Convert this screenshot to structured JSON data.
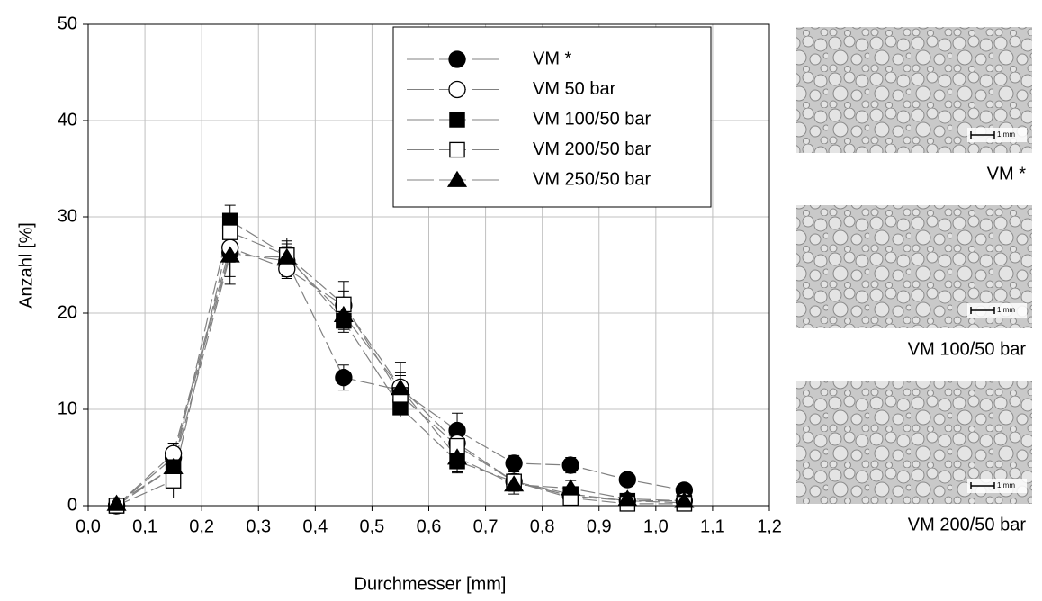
{
  "chart_data": {
    "type": "line",
    "xlabel": "Durchmesser [mm]",
    "ylabel": "Anzahl [%]",
    "x": [
      0.05,
      0.15,
      0.25,
      0.35,
      0.45,
      0.55,
      0.65,
      0.75,
      0.85,
      0.95,
      1.05
    ],
    "series": [
      {
        "name": "VM *",
        "color": "#000000",
        "marker": "circle",
        "filled": true,
        "values": [
          0,
          5,
          26.3,
          25.4,
          13.3,
          12,
          7.8,
          4.4,
          4.2,
          2.7,
          1.6
        ],
        "errors": [
          0.3,
          1.5,
          2.5,
          1.5,
          1.3,
          1.8,
          1.8,
          0.8,
          0.8,
          0.6,
          0.6
        ]
      },
      {
        "name": "VM 50 bar",
        "color": "#000000",
        "marker": "circle",
        "filled": false,
        "values": [
          0,
          5.4,
          26.8,
          24.6,
          20.8,
          12.3,
          6.5,
          2.5,
          1,
          0.5,
          0.5
        ],
        "errors": [
          0.3,
          1,
          1.5,
          1,
          1.5,
          1.2,
          1.2,
          0.8,
          0.5,
          0.3,
          0.3
        ]
      },
      {
        "name": "VM 100/50 bar",
        "color": "#000000",
        "marker": "square",
        "filled": true,
        "values": [
          0,
          4,
          29.6,
          26,
          19.2,
          10.2,
          4.6,
          2.5,
          1.2,
          0.5,
          0.3
        ],
        "errors": [
          0.3,
          1,
          1.6,
          1.2,
          1.2,
          1,
          1.2,
          0.8,
          0.5,
          0.3,
          0.3
        ]
      },
      {
        "name": "VM 200/50 bar",
        "color": "#000000",
        "marker": "square",
        "filled": false,
        "values": [
          0,
          2.6,
          28.4,
          26,
          20.9,
          11.5,
          6.2,
          2.5,
          0.8,
          0.2,
          0.2
        ],
        "errors": [
          0.3,
          1.8,
          1.5,
          1.5,
          2.4,
          1.5,
          1.2,
          1,
          0.5,
          0.3,
          0.3
        ]
      },
      {
        "name": "VM 250/50 bar",
        "color": "#000000",
        "marker": "triangle",
        "filled": true,
        "values": [
          0.2,
          4,
          26,
          25.8,
          19.8,
          12.2,
          5,
          2.2,
          1.8,
          0.7,
          0.5
        ],
        "errors": [
          0.3,
          1.5,
          3,
          2,
          1.5,
          2.7,
          1.5,
          1,
          0.8,
          0.4,
          0.3
        ]
      }
    ],
    "xlim": [
      0,
      1.2
    ],
    "xticks": [
      {
        "value": 0,
        "label": "0,0"
      },
      {
        "value": 0.1,
        "label": "0,1"
      },
      {
        "value": 0.2,
        "label": "0,2"
      },
      {
        "value": 0.3,
        "label": "0,3"
      },
      {
        "value": 0.4,
        "label": "0,4"
      },
      {
        "value": 0.5,
        "label": "0,5"
      },
      {
        "value": 0.6,
        "label": "0,6"
      },
      {
        "value": 0.7,
        "label": "0,7"
      },
      {
        "value": 0.8,
        "label": "0,8"
      },
      {
        "value": 0.9,
        "label": "0,9"
      },
      {
        "value": 1,
        "label": "1,0"
      },
      {
        "value": 1.1,
        "label": "1,1"
      },
      {
        "value": 1.2,
        "label": "1,2"
      }
    ],
    "ylim": [
      0,
      50
    ],
    "yticks": [
      0,
      10,
      20,
      30,
      40,
      50
    ],
    "grid": true,
    "legend": "top-right",
    "line_color": "#808080"
  },
  "images": [
    {
      "caption": "VM *",
      "scale_label": "1 mm"
    },
    {
      "caption": "VM 100/50 bar",
      "scale_label": "1 mm"
    },
    {
      "caption": "VM 200/50 bar",
      "scale_label": "1 mm"
    }
  ]
}
